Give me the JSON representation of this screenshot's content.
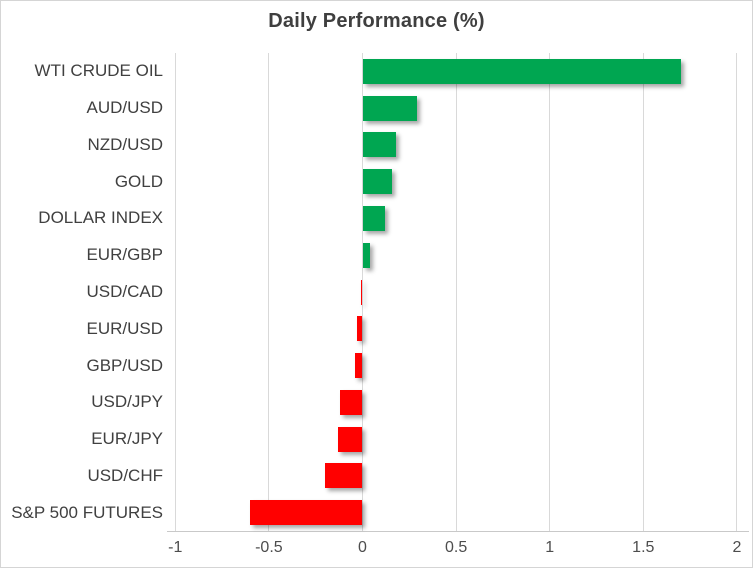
{
  "window": {
    "background_color": "#FFFFFF",
    "border_color": "#D5D5D5"
  },
  "chart_data": {
    "type": "bar",
    "orientation": "horizontal",
    "title": "Daily Performance (%)",
    "categories": [
      "WTI CRUDE OIL",
      "AUD/USD",
      "NZD/USD",
      "GOLD",
      "DOLLAR INDEX",
      "EUR/GBP",
      "USD/CAD",
      "EUR/USD",
      "GBP/USD",
      "USD/JPY",
      "EUR/JPY",
      "USD/CHF",
      "S&P 500 FUTURES"
    ],
    "values": [
      1.7,
      0.29,
      0.18,
      0.16,
      0.12,
      0.04,
      -0.01,
      -0.03,
      -0.04,
      -0.12,
      -0.13,
      -0.2,
      -0.6
    ],
    "xlabel": "",
    "ylabel": "",
    "xlim": [
      -1,
      2
    ],
    "x_tick_labels": [
      "-1",
      "-0.5",
      "0",
      "0.5",
      "1",
      "1.5",
      "2"
    ],
    "x_tick_values": [
      -1,
      -0.5,
      0,
      0.5,
      1,
      1.5,
      2
    ],
    "grid": "vertical",
    "legend": "none",
    "positive_color": "#00A651",
    "negative_color": "#FF0000",
    "gridline_color": "#D9D9D9",
    "axis_line_color": "#C9C9C9",
    "title_color": "#3F3F3F",
    "label_color": "#404040"
  }
}
